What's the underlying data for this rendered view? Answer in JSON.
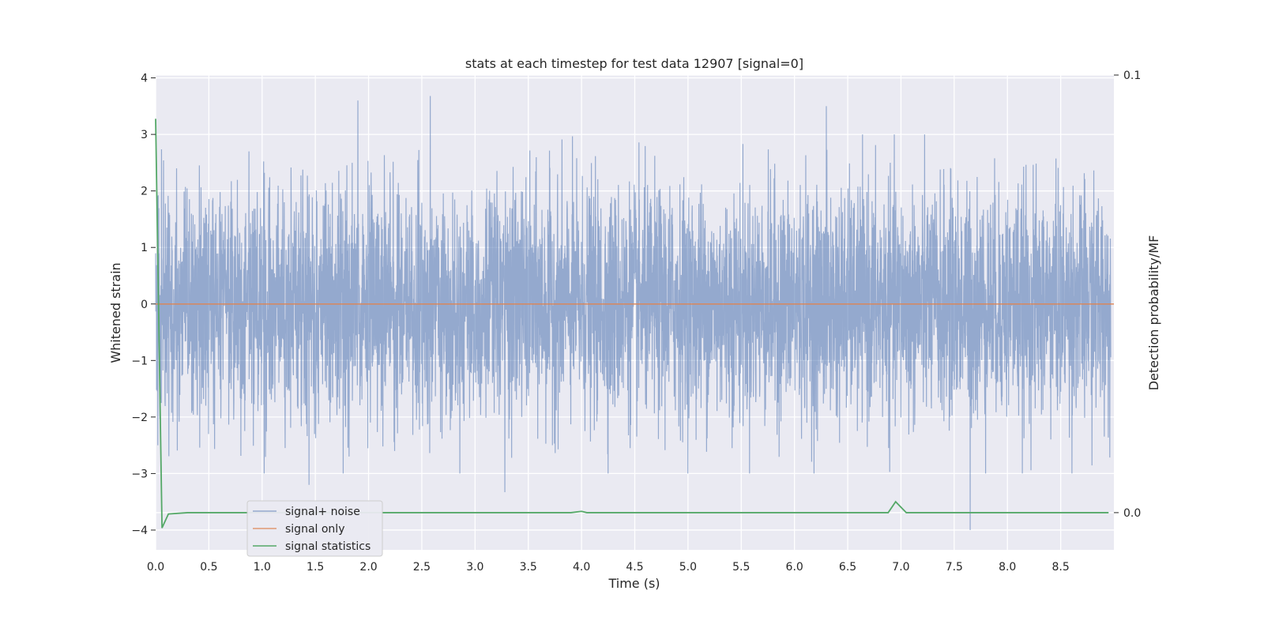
{
  "chart_data": {
    "type": "line",
    "title": "stats at each timestep for test data 12907 [signal=0]",
    "xlabel": "Time (s)",
    "ylabel": "Whitened strain",
    "y2label": "Detection probability/MF",
    "xlim": [
      0,
      9.0
    ],
    "ylim": [
      -4.35,
      4.05
    ],
    "y2lim": [
      -0.0085,
      0.1
    ],
    "xticks": [
      0.0,
      0.5,
      1.0,
      1.5,
      2.0,
      2.5,
      3.0,
      3.5,
      4.0,
      4.5,
      5.0,
      5.5,
      6.0,
      6.5,
      7.0,
      7.5,
      8.0,
      8.5
    ],
    "xtick_labels": [
      "0.0",
      "0.5",
      "1.0",
      "1.5",
      "2.0",
      "2.5",
      "3.0",
      "3.5",
      "4.0",
      "4.5",
      "5.0",
      "5.5",
      "6.0",
      "6.5",
      "7.0",
      "7.5",
      "8.0",
      "8.5"
    ],
    "yticks": [
      -4,
      -3,
      -2,
      -1,
      0,
      1,
      2,
      3,
      4
    ],
    "ytick_labels": [
      "−4",
      "−3",
      "−2",
      "−1",
      "0",
      "1",
      "2",
      "3",
      "4"
    ],
    "y2ticks": [
      0.0,
      0.1
    ],
    "y2tick_labels": [
      "0.0",
      "0.1"
    ],
    "grid": true,
    "legend_position": "lower-left",
    "series": [
      {
        "name": "signal+ noise",
        "color": "#4c72b0",
        "axis": "left",
        "description_points": {
          "typical_amplitude": 1.0,
          "peaks": [
            {
              "x": 1.9,
              "y": 3.6
            },
            {
              "x": 2.58,
              "y": 3.68
            },
            {
              "x": 6.3,
              "y": 3.5
            },
            {
              "x": 1.44,
              "y": -3.2
            },
            {
              "x": 3.28,
              "y": -3.33
            },
            {
              "x": 7.65,
              "y": -4.0
            },
            {
              "x": 0.02,
              "y": -2.5
            }
          ]
        }
      },
      {
        "name": "signal only",
        "color": "#dd8452",
        "axis": "left",
        "x": [
          0.0,
          9.0
        ],
        "y": [
          0.0,
          0.0
        ]
      },
      {
        "name": "signal statistics",
        "color": "#55a868",
        "axis": "right",
        "x": [
          0.0,
          0.06,
          0.12,
          0.3,
          3.9,
          4.0,
          4.05,
          6.88,
          6.95,
          7.05,
          8.95
        ],
        "y": [
          0.09,
          -0.0035,
          -0.0003,
          0.0,
          0.0,
          0.0003,
          0.0,
          0.0,
          0.0025,
          0.0,
          0.0
        ]
      }
    ]
  }
}
